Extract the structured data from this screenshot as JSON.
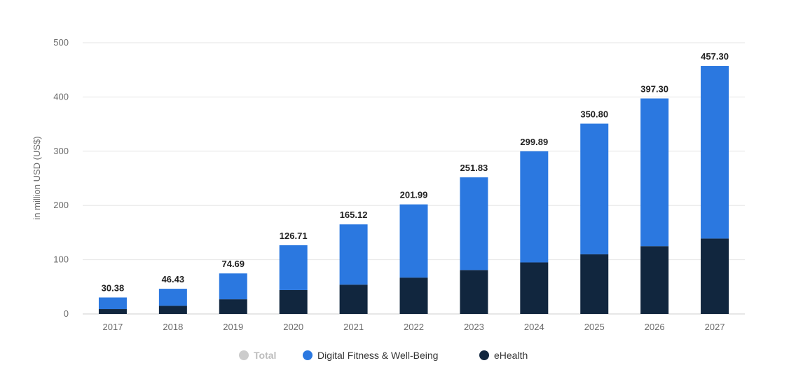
{
  "chart_data": {
    "type": "bar",
    "stacked": true,
    "ylabel": "in million USD (US$)",
    "ylim": [
      0,
      500
    ],
    "yticks": [
      0,
      100,
      200,
      300,
      400,
      500
    ],
    "grid": true,
    "legend_placement": "bottom",
    "categories": [
      "2017",
      "2018",
      "2019",
      "2020",
      "2021",
      "2022",
      "2023",
      "2024",
      "2025",
      "2026",
      "2027"
    ],
    "totals": [
      30.38,
      46.43,
      74.69,
      126.71,
      165.12,
      201.99,
      251.83,
      299.89,
      350.8,
      397.3,
      457.3
    ],
    "total_labels": [
      "30.38",
      "46.43",
      "74.69",
      "126.71",
      "165.12",
      "201.99",
      "251.83",
      "299.89",
      "350.80",
      "397.30",
      "457.30"
    ],
    "series": [
      {
        "name": "eHealth",
        "color": "#11263e",
        "values": [
          9,
          15,
          27,
          44,
          54,
          67,
          81,
          95,
          110,
          125,
          139
        ]
      },
      {
        "name": "Digital Fitness & Well-Being",
        "color": "#2b78e0",
        "values": [
          21.38,
          31.43,
          47.69,
          82.71,
          111.12,
          134.99,
          170.83,
          204.89,
          240.8,
          272.3,
          318.3
        ]
      }
    ],
    "legend": [
      {
        "label": "Total",
        "color": "#cccccc",
        "muted": true
      },
      {
        "label": "Digital Fitness & Well-Being",
        "color": "#2b78e0",
        "muted": false
      },
      {
        "label": "eHealth",
        "color": "#11263e",
        "muted": false
      }
    ]
  }
}
